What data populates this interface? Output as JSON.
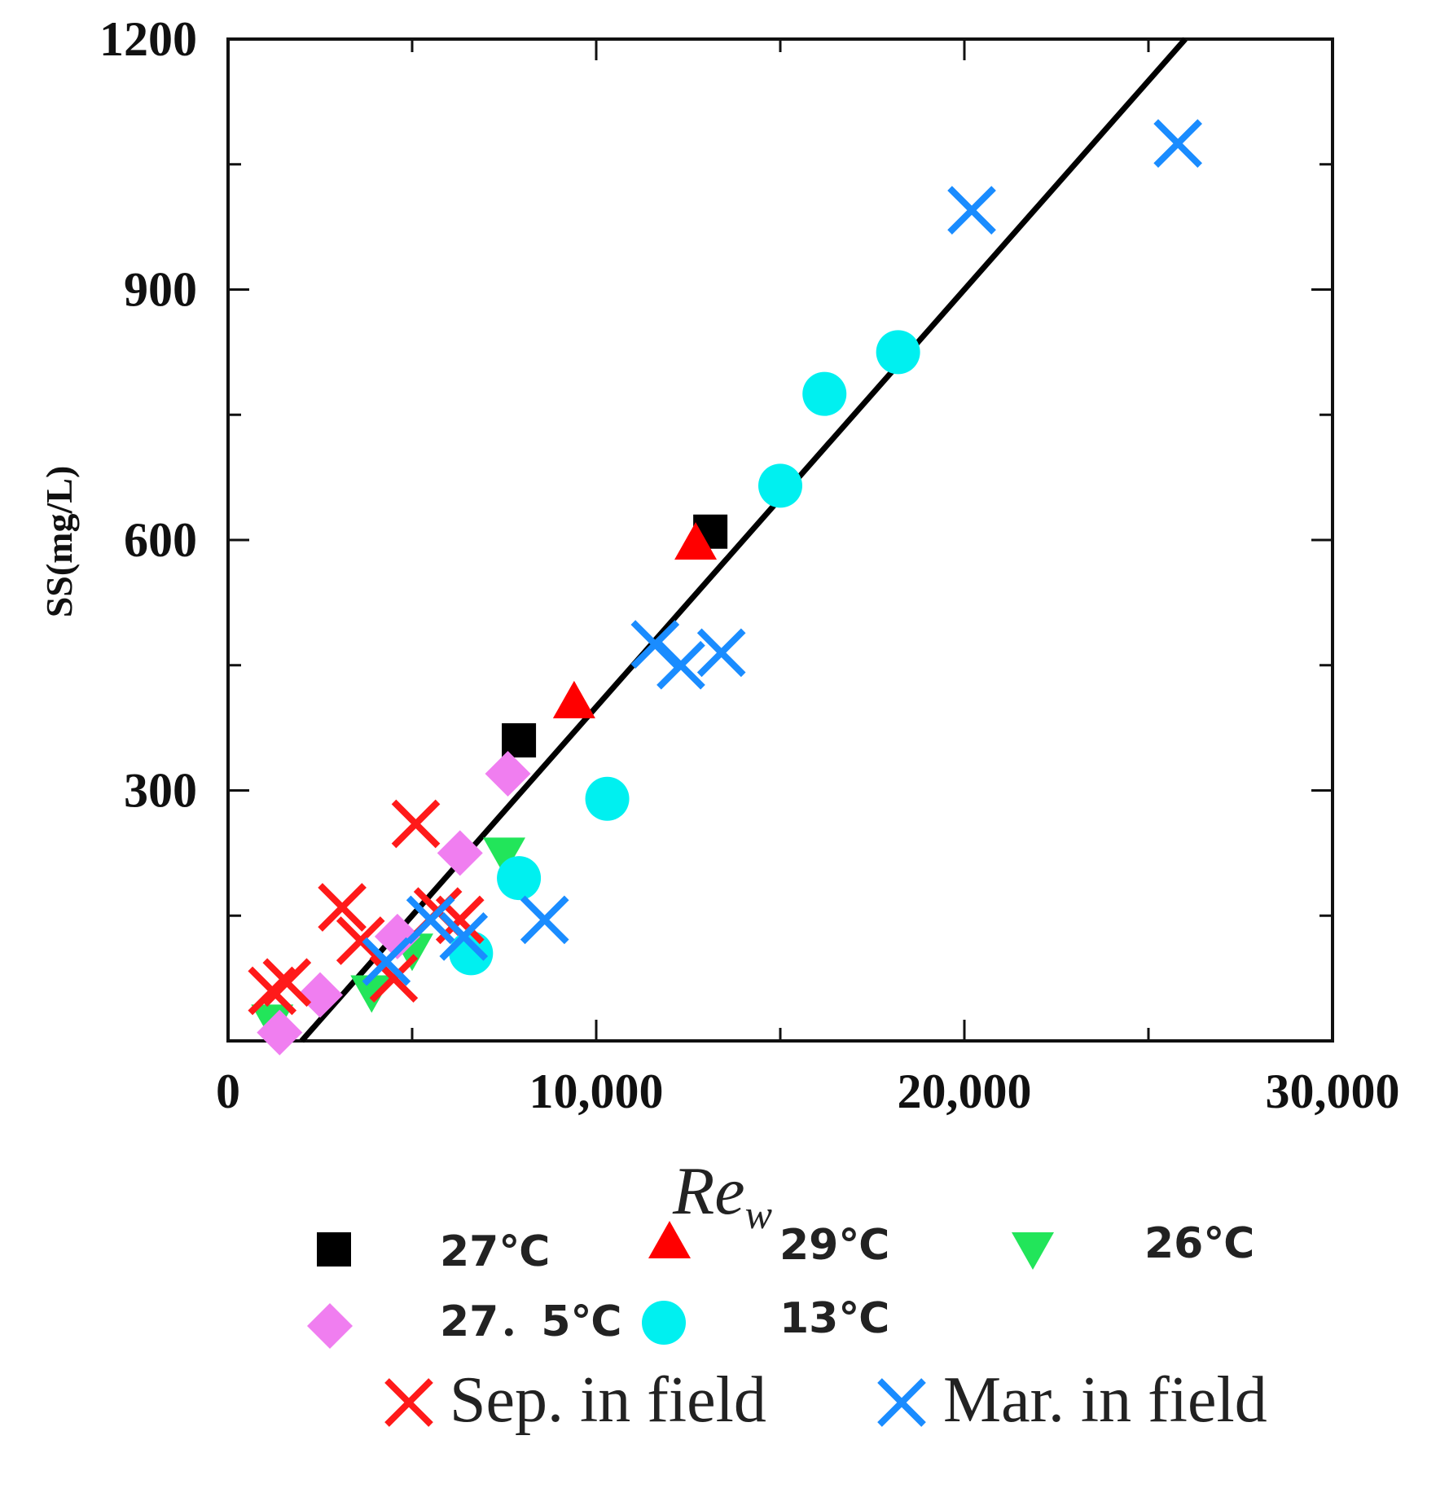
{
  "chart_data": {
    "type": "scatter",
    "title": "",
    "xlabel": "Re",
    "xlabel_subscript": "w",
    "ylabel": "SS(mg/L)",
    "xlim": [
      0,
      30000
    ],
    "ylim": [
      0,
      1200
    ],
    "x_ticks": [
      0,
      10000,
      20000,
      30000
    ],
    "x_tick_labels": [
      "0",
      "10,000",
      "20,000",
      "30,000"
    ],
    "y_ticks": [
      300,
      600,
      900,
      1200
    ],
    "y_tick_labels": [
      "300",
      "600",
      "900",
      "1200"
    ],
    "grid": false,
    "legend_position": "bottom",
    "fit_line": {
      "x": [
        2000,
        26000
      ],
      "y": [
        0,
        1200
      ]
    },
    "series": [
      {
        "name": "27℃",
        "marker": "square",
        "color": "#000000",
        "x": [
          7900,
          13100
        ],
        "y": [
          360,
          610
        ]
      },
      {
        "name": "29℃",
        "marker": "triangle-up",
        "color": "#ff0000",
        "x": [
          9400,
          12700
        ],
        "y": [
          405,
          595
        ]
      },
      {
        "name": "26℃",
        "marker": "triangle-down",
        "color": "#22e55a",
        "x": [
          1200,
          3900,
          5000,
          7500
        ],
        "y": [
          25,
          60,
          110,
          225
        ]
      },
      {
        "name": "27．5℃",
        "marker": "diamond",
        "color": "#f07ef0",
        "x": [
          1400,
          2500,
          4600,
          6300,
          7600
        ],
        "y": [
          10,
          55,
          125,
          225,
          320
        ]
      },
      {
        "name": "13℃",
        "marker": "circle",
        "color": "#00f0f0",
        "x": [
          6600,
          7900,
          10300,
          15000,
          16200,
          18200
        ],
        "y": [
          105,
          195,
          290,
          665,
          775,
          825
        ]
      },
      {
        "name": "Sep. in field",
        "marker": "x",
        "color": "#ff1a1a",
        "x": [
          1200,
          1600,
          3100,
          3600,
          4500,
          5100,
          5700,
          6300
        ],
        "y": [
          60,
          70,
          160,
          120,
          75,
          260,
          155,
          145
        ]
      },
      {
        "name": "Mar. in field",
        "marker": "x",
        "color": "#1a8cff",
        "x": [
          4300,
          5500,
          6400,
          8600,
          11600,
          12300,
          13400,
          20200,
          25800
        ],
        "y": [
          95,
          145,
          125,
          145,
          475,
          450,
          465,
          995,
          1075
        ]
      }
    ]
  }
}
